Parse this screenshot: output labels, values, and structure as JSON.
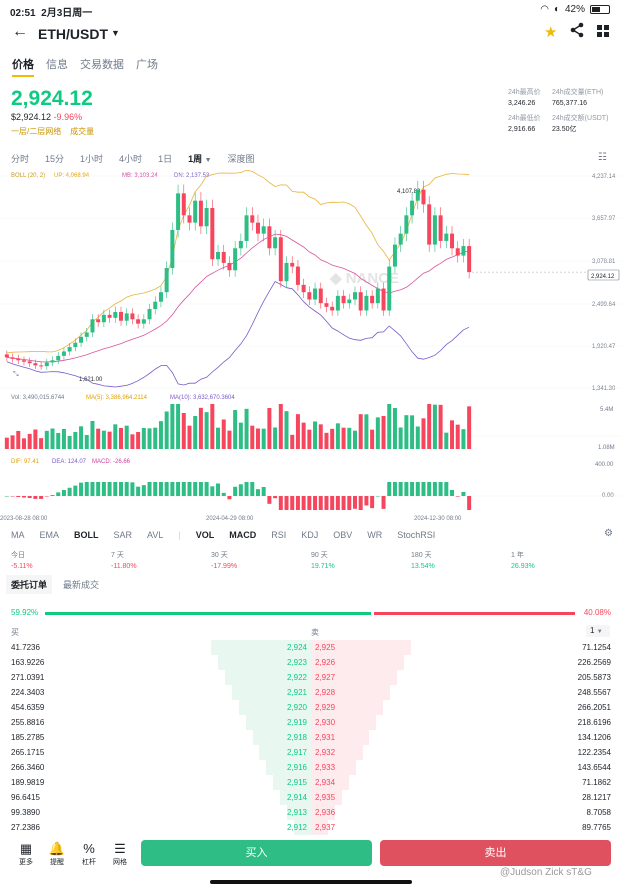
{
  "status": {
    "time": "02:51",
    "date": "2月3日周一",
    "battery": "42%"
  },
  "header": {
    "pair": "ETH/USDT"
  },
  "tabs": [
    "价格",
    "信息",
    "交易数据",
    "广场"
  ],
  "price": {
    "last": "2,924.12",
    "usd": "$2,924.12",
    "change": "-9.96%",
    "grid": "一层/二层网络",
    "volume_link": "成交量"
  },
  "stats": {
    "high_label": "24h最高价",
    "high": "3,246.26",
    "vol_eth_label": "24h成交量(ETH)",
    "vol_eth": "765,377.16",
    "low_label": "24h最低价",
    "low": "2,916.66",
    "vol_usdt_label": "24h成交额(USDT)",
    "vol_usdt": "23.50亿"
  },
  "timeframes": [
    "分时",
    "15分",
    "1小时",
    "4小时",
    "1日",
    "1周",
    "深度图"
  ],
  "chart_data": {
    "type": "candlestick",
    "boll": {
      "label": "BOLL (20, 2)",
      "up": "UP: 4,068.94",
      "mb": "MB: 3,103.24",
      "dn": "DN: 2,137.53"
    },
    "y_ticks": [
      "4,237.14",
      "3,657.97",
      "3,078.81",
      "2,499.64",
      "1,920.47",
      "1,341.30"
    ],
    "price_tag": "2,924.12",
    "max_label": "4,107.80",
    "min_label": "1,621.00",
    "candles": [
      [
        1800,
        1760
      ],
      [
        1760,
        1740
      ],
      [
        1745,
        1720
      ],
      [
        1720,
        1700
      ],
      [
        1705,
        1680
      ],
      [
        1680,
        1650
      ],
      [
        1650,
        1640
      ],
      [
        1640,
        1690
      ],
      [
        1690,
        1720
      ],
      [
        1720,
        1780
      ],
      [
        1780,
        1840
      ],
      [
        1840,
        1900
      ],
      [
        1900,
        1960
      ],
      [
        1960,
        2040
      ],
      [
        2040,
        2100
      ],
      [
        2100,
        2280
      ],
      [
        2280,
        2240
      ],
      [
        2240,
        2340
      ],
      [
        2340,
        2300
      ],
      [
        2300,
        2380
      ],
      [
        2380,
        2260
      ],
      [
        2260,
        2360
      ],
      [
        2360,
        2280
      ],
      [
        2280,
        2220
      ],
      [
        2220,
        2280
      ],
      [
        2280,
        2420
      ],
      [
        2420,
        2520
      ],
      [
        2520,
        2650
      ],
      [
        2650,
        2980
      ],
      [
        2980,
        3500
      ],
      [
        3500,
        4000
      ],
      [
        4000,
        3700
      ],
      [
        3700,
        3600
      ],
      [
        3600,
        3900
      ],
      [
        3900,
        3550
      ],
      [
        3550,
        3800
      ],
      [
        3800,
        3100
      ],
      [
        3100,
        3200
      ],
      [
        3200,
        3050
      ],
      [
        3050,
        2950
      ],
      [
        2950,
        3250
      ],
      [
        3250,
        3350
      ],
      [
        3350,
        3700
      ],
      [
        3700,
        3600
      ],
      [
        3600,
        3450
      ],
      [
        3450,
        3550
      ],
      [
        3550,
        3250
      ],
      [
        3250,
        3400
      ],
      [
        3400,
        2800
      ],
      [
        2800,
        3050
      ],
      [
        3050,
        3000
      ],
      [
        3000,
        2750
      ],
      [
        2750,
        2650
      ],
      [
        2650,
        2550
      ],
      [
        2550,
        2700
      ],
      [
        2700,
        2500
      ],
      [
        2500,
        2450
      ],
      [
        2450,
        2400
      ],
      [
        2400,
        2600
      ],
      [
        2600,
        2500
      ],
      [
        2500,
        2550
      ],
      [
        2550,
        2650
      ],
      [
        2650,
        2400
      ],
      [
        2400,
        2600
      ],
      [
        2600,
        2500
      ],
      [
        2500,
        2700
      ],
      [
        2700,
        2400
      ],
      [
        2400,
        3000
      ],
      [
        3000,
        3300
      ],
      [
        3300,
        3450
      ],
      [
        3450,
        3700
      ],
      [
        3700,
        3900
      ],
      [
        3900,
        4050
      ],
      [
        4050,
        3850
      ],
      [
        3850,
        3300
      ],
      [
        3300,
        3700
      ],
      [
        3700,
        3350
      ],
      [
        3350,
        3450
      ],
      [
        3450,
        3250
      ],
      [
        3250,
        3150
      ],
      [
        3150,
        3280
      ],
      [
        3280,
        2924
      ]
    ],
    "volume": {
      "label": "Vol: 3,490,015.6744",
      "ma5": "MA(5): 3,386,964.2114",
      "ma10": "MA(10): 3,632,670.3604",
      "ticks": [
        "5.4M",
        "1.08M"
      ]
    },
    "macd": {
      "dif": "DIF: 97.41",
      "dea": "DEA: 124.07",
      "macd": "MACD: -26.66",
      "ticks": [
        "400.00",
        "0.00"
      ]
    },
    "x_labels": [
      "2023-08-28 08:00",
      "2024-04-29 08:00",
      "2024-12-30 08:00"
    ]
  },
  "indicators": [
    "MA",
    "EMA",
    "BOLL",
    "SAR",
    "AVL",
    "VOL",
    "MACD",
    "RSI",
    "KDJ",
    "OBV",
    "WR",
    "StochRSI"
  ],
  "performance": [
    {
      "label": "今日",
      "value": "-5.11%"
    },
    {
      "label": "7 天",
      "value": "-11.80%"
    },
    {
      "label": "30 天",
      "value": "-17.99%"
    },
    {
      "label": "90 天",
      "value": "19.71%"
    },
    {
      "label": "180 天",
      "value": "13.54%"
    },
    {
      "label": "1 年",
      "value": "26.93%"
    }
  ],
  "orderbook": {
    "tabs": [
      "委托订单",
      "最新成交"
    ],
    "buy_ratio": "59.92%",
    "sell_ratio": "40.08%",
    "buy_header": "买",
    "sell_header": "卖",
    "precision": "1",
    "rows": [
      [
        "41.7236",
        "2,924",
        "2,925",
        "71.1254"
      ],
      [
        "163.9226",
        "2,923",
        "2,926",
        "226.2569"
      ],
      [
        "271.0391",
        "2,922",
        "2,927",
        "205.5873"
      ],
      [
        "224.3403",
        "2,921",
        "2,928",
        "248.5567"
      ],
      [
        "454.6359",
        "2,920",
        "2,929",
        "266.2051"
      ],
      [
        "255.8816",
        "2,919",
        "2,930",
        "218.6196"
      ],
      [
        "185.2785",
        "2,918",
        "2,931",
        "134.1206"
      ],
      [
        "265.1715",
        "2,917",
        "2,932",
        "122.2354"
      ],
      [
        "266.3460",
        "2,916",
        "2,933",
        "143.6544"
      ],
      [
        "189.9819",
        "2,915",
        "2,934",
        "71.1862"
      ],
      [
        "96.6415",
        "2,914",
        "2,935",
        "28.1217"
      ],
      [
        "99.3890",
        "2,913",
        "2,936",
        "8.7058"
      ],
      [
        "27.2386",
        "2,912",
        "2,937",
        "89.7765"
      ]
    ]
  },
  "nav": {
    "more": "更多",
    "alert": "提醒",
    "leverage": "杠杆",
    "grid": "网格",
    "buy": "买入",
    "sell": "卖出"
  },
  "watermark": "@Judson Zick sT&G",
  "colors": {
    "green": "#0ecb81",
    "red": "#f6465d",
    "gold": "#f0b90b"
  }
}
